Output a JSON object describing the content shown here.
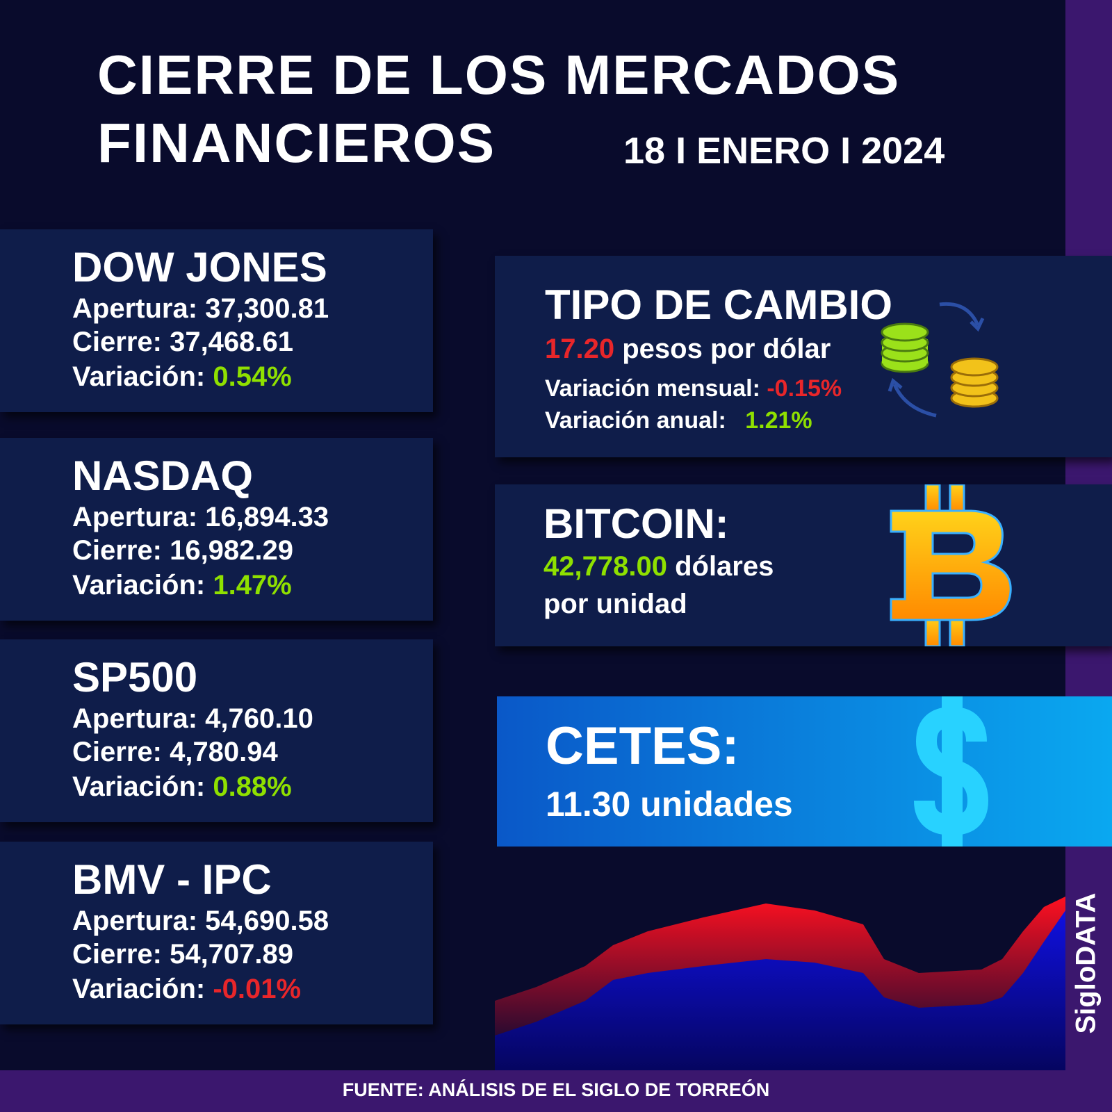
{
  "header": {
    "title_line1": "CIERRE DE LOS MERCADOS",
    "title_line2": "FINANCIEROS",
    "date": "18 I ENERO I 2024"
  },
  "indices": [
    {
      "name": "DOW JONES",
      "open_label": "Apertura:",
      "open": "37,300.81",
      "close_label": "Cierre:",
      "close": "37,468.61",
      "change_label": "Variación:",
      "change": "0.54%"
    },
    {
      "name": "NASDAQ",
      "open_label": "Apertura:",
      "open": "16,894.33",
      "close_label": "Cierre:",
      "close": "16,982.29",
      "change_label": "Variación:",
      "change": "1.47%"
    },
    {
      "name": "SP500",
      "open_label": "Apertura:",
      "open": "4,760.10",
      "close_label": "Cierre:",
      "close": "4,780.94",
      "change_label": "Variación:",
      "change": "0.88%"
    },
    {
      "name": "BMV - IPC",
      "open_label": "Apertura:",
      "open": "54,690.58",
      "close_label": "Cierre:",
      "close": "54,707.89",
      "change_label": "Variación:",
      "change": "-0.01%"
    }
  ],
  "exchange_rate": {
    "title": "TIPO DE CAMBIO",
    "rate": "17.20",
    "rate_unit": "pesos por dólar",
    "monthly_label": "Variación mensual:",
    "monthly": "-0.15%",
    "annual_label": "Variación anual:",
    "annual": "1.21%"
  },
  "bitcoin": {
    "title": "BITCOIN:",
    "price": "42,778.00",
    "unit_line1": "dólares",
    "unit_line2": "por unidad"
  },
  "cetes": {
    "title": "CETES:",
    "value": "11.30 unidades"
  },
  "brand": "SigloDATA",
  "source": "FUENTE: ANÁLISIS DE EL SIGLO DE TORREÓN"
}
